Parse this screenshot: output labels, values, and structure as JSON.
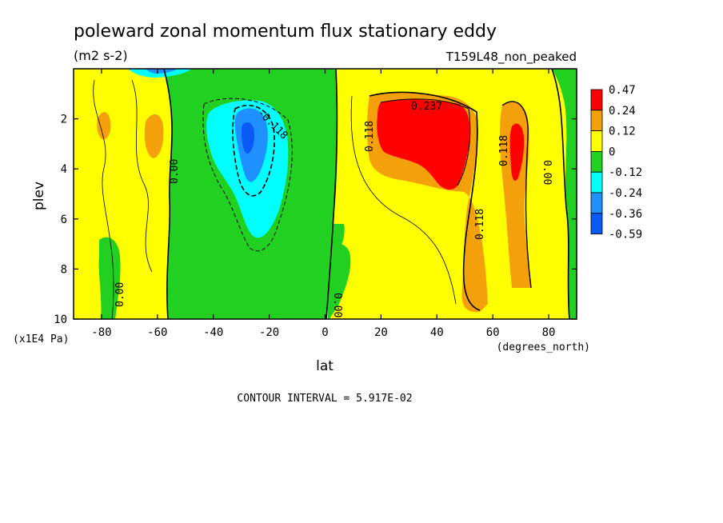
{
  "chart_data": {
    "type": "heatmap",
    "title": "poleward zonal momentum flux stationary eddy",
    "units": "(m2 s-2)",
    "run_label": "T159L48_non_peaked",
    "xlabel": "lat",
    "x_units": "(degrees_north)",
    "ylabel": "plev",
    "y_units": "(x1E4 Pa)",
    "xlim": [
      -90,
      90
    ],
    "ylim": [
      0,
      10
    ],
    "x_ticks": [
      "-80",
      "-60",
      "-40",
      "-20",
      "0",
      "20",
      "40",
      "60",
      "80"
    ],
    "x_tick_values": [
      -80,
      -60,
      -40,
      -20,
      0,
      20,
      40,
      60,
      80
    ],
    "y_ticks": [
      "2",
      "4",
      "6",
      "8",
      "10"
    ],
    "y_tick_values": [
      2,
      4,
      6,
      8,
      10
    ],
    "contour_interval_text": "CONTOUR INTERVAL = 5.917E-02",
    "contour_labels": [
      "0.237",
      "-0.118",
      "0.118",
      "0.118",
      "0.118",
      "0.00",
      "0.00",
      "0.00",
      "0.00"
    ],
    "colorbar": {
      "labels": [
        "0.47",
        "0.24",
        "0.12",
        "0",
        "-0.12",
        "-0.24",
        "-0.36",
        "-0.59"
      ],
      "colors": [
        "#ff0000",
        "#f4a00a",
        "#ffff00",
        "#22d022",
        "#00ffff",
        "#1e90ff",
        "#0a5af5"
      ]
    }
  }
}
